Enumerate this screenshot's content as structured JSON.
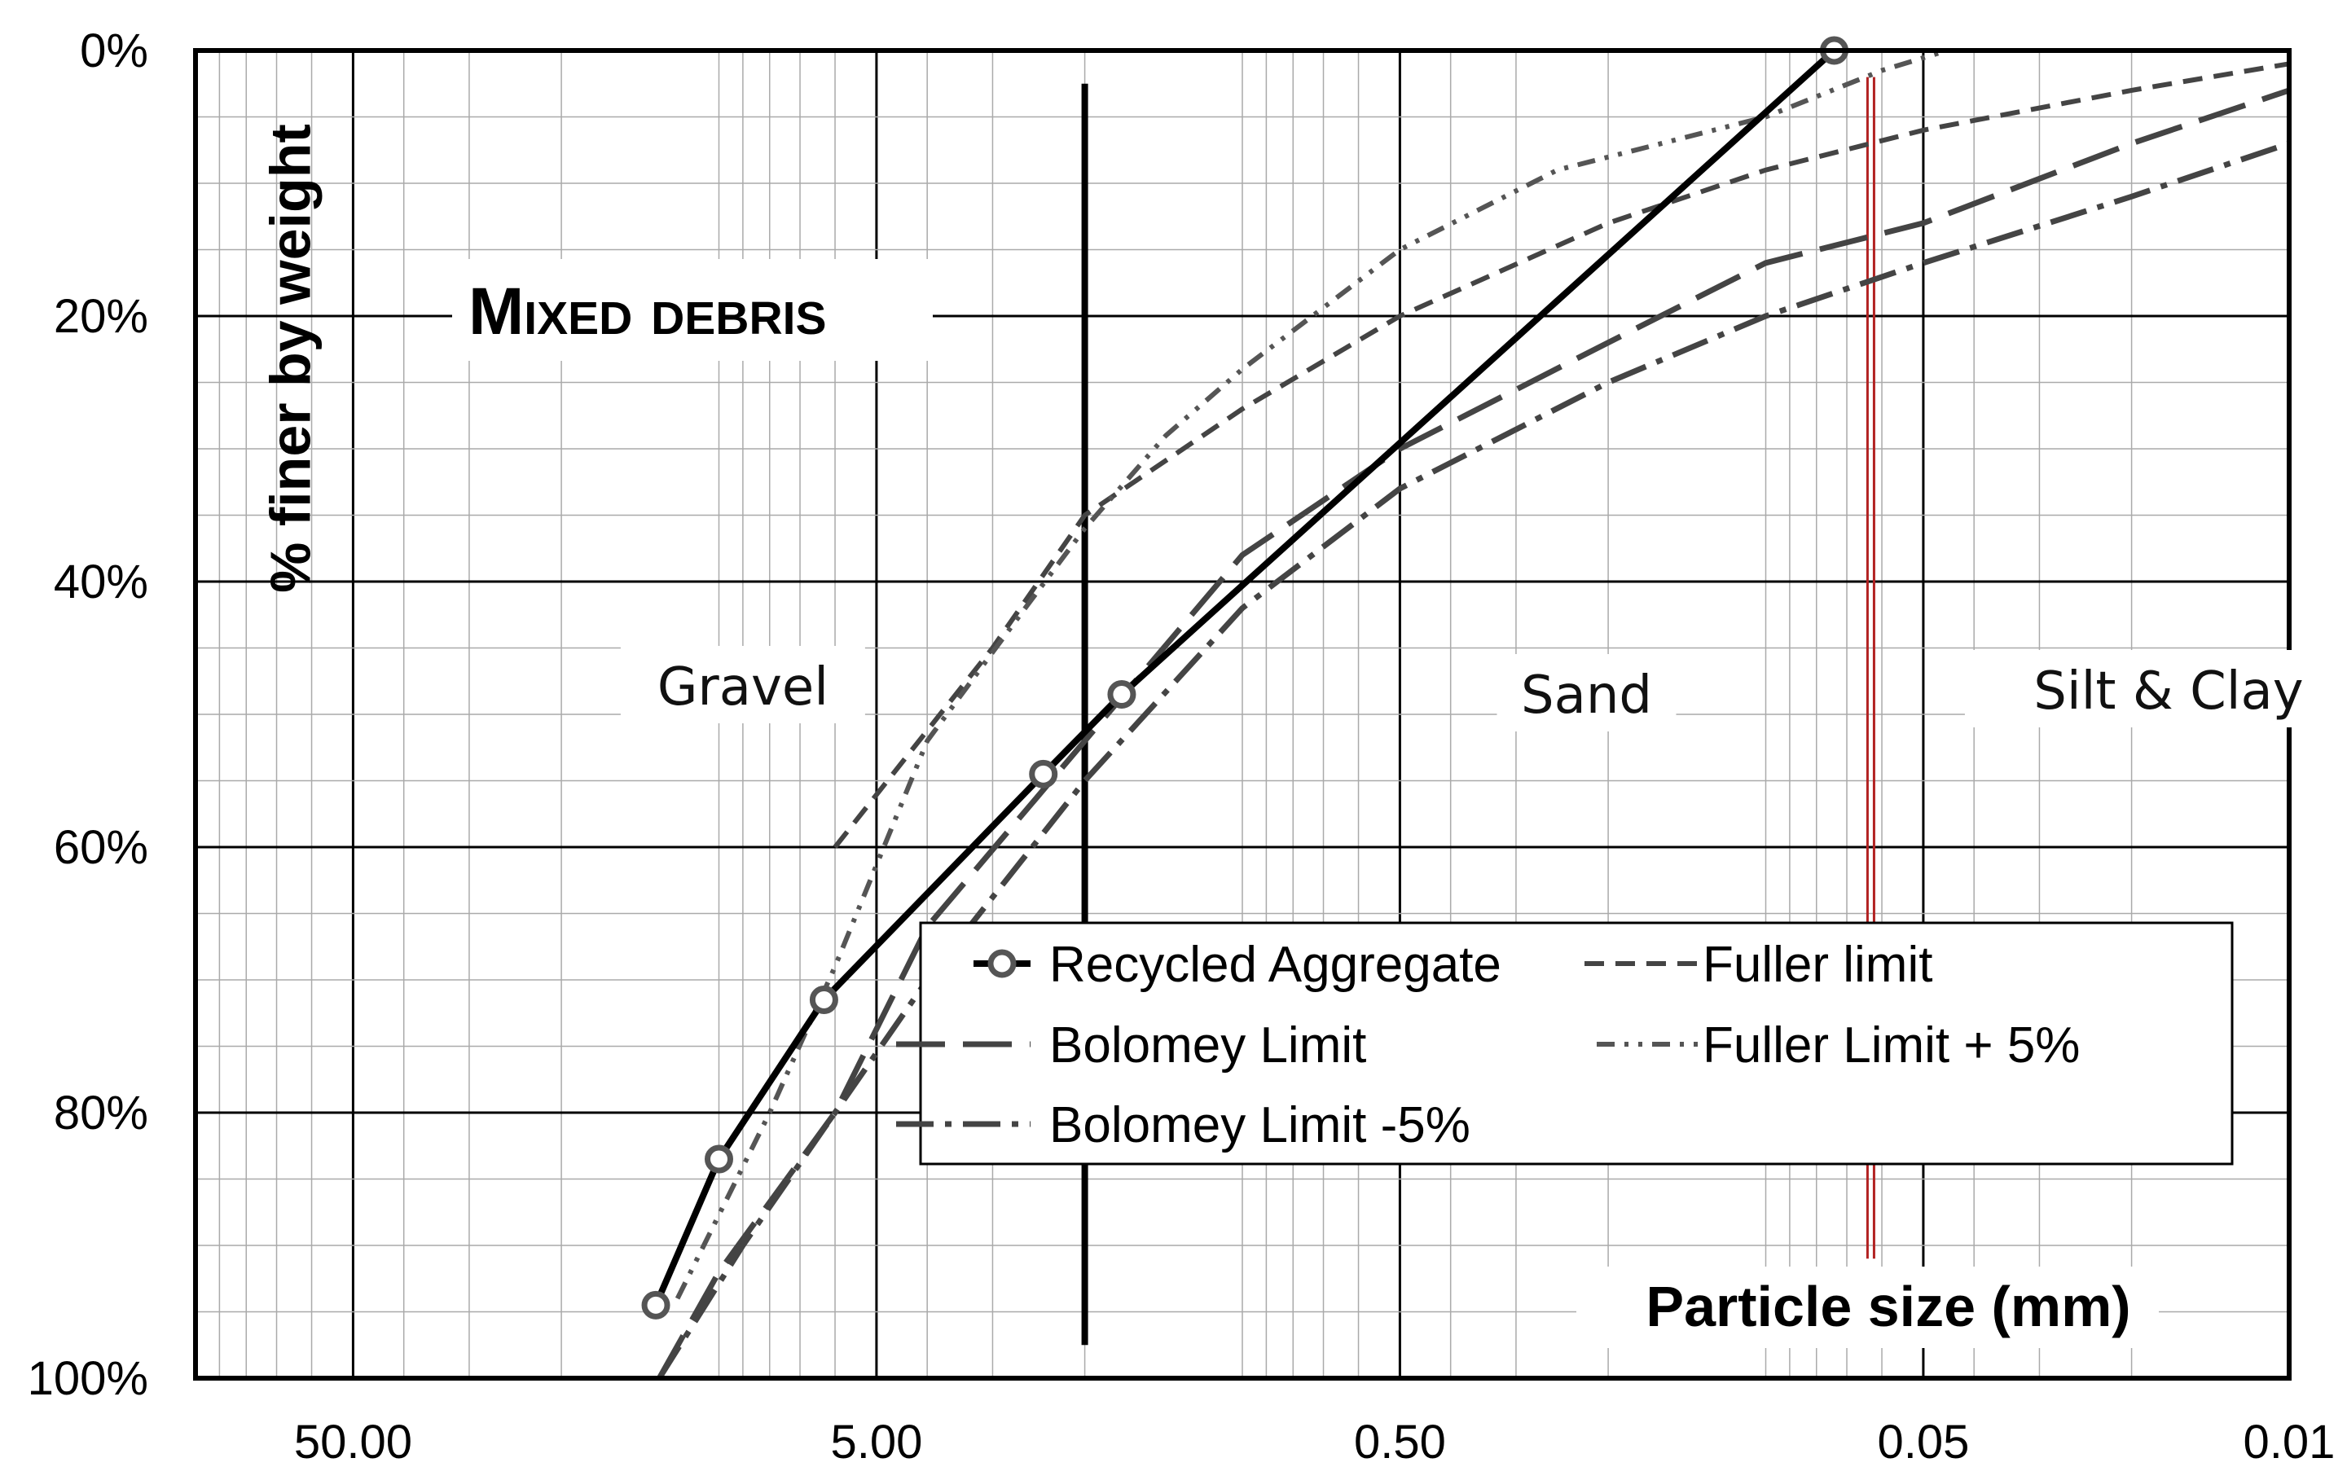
{
  "chart_data": {
    "type": "line",
    "title": "Mixed debris",
    "xlabel": "Particle size (mm)",
    "ylabel": "% finer by weight",
    "x_scale": "log",
    "x_reversed": true,
    "xlim": [
      100,
      0.01
    ],
    "ylim": [
      0,
      100
    ],
    "y_reversed": true,
    "x_ticks": [
      50,
      5,
      0.5,
      0.05,
      0.01
    ],
    "x_tick_labels": [
      "50.00",
      "5.00",
      "0.50",
      "0.05",
      "0.01"
    ],
    "y_ticks": [
      0,
      20,
      40,
      60,
      80,
      100
    ],
    "y_tick_labels": [
      "0%",
      "20%",
      "40%",
      "60%",
      "80%",
      "100%"
    ],
    "grid": true,
    "legend_position": "bottom-right",
    "regions": [
      {
        "label": "Gravel",
        "x_at": 9
      },
      {
        "label": "Sand",
        "x_at": 0.22
      },
      {
        "label": "Silt & Clay",
        "x_at": 0.017
      }
    ],
    "boundaries": [
      {
        "x": 2,
        "color": "#000000"
      },
      {
        "x": 0.063,
        "color": "#b22222"
      }
    ],
    "series": [
      {
        "name": "Recycled Aggregate",
        "style": "solid-markers",
        "color": "#000000",
        "points": [
          [
            13.2,
            94.5
          ],
          [
            10,
            83.5
          ],
          [
            6.3,
            71.5
          ],
          [
            2.4,
            54.5
          ],
          [
            1.7,
            48.5
          ],
          [
            0.074,
            0
          ]
        ]
      },
      {
        "name": "Fuller limit",
        "style": "short-dash",
        "color": "#444444",
        "points": [
          [
            6,
            60
          ],
          [
            3,
            45
          ],
          [
            2,
            35
          ],
          [
            1,
            27
          ],
          [
            0.5,
            20
          ],
          [
            0.2,
            13
          ],
          [
            0.1,
            9
          ],
          [
            0.05,
            6
          ],
          [
            0.02,
            3
          ],
          [
            0.01,
            1
          ]
        ]
      },
      {
        "name": "Bolomey Limit",
        "style": "long-dash",
        "color": "#444444",
        "points": [
          [
            13,
            100
          ],
          [
            10,
            92
          ],
          [
            6,
            80
          ],
          [
            4,
            66
          ],
          [
            2,
            52
          ],
          [
            1,
            38
          ],
          [
            0.5,
            30
          ],
          [
            0.2,
            22
          ],
          [
            0.1,
            16
          ],
          [
            0.05,
            13
          ],
          [
            0.02,
            7
          ],
          [
            0.01,
            3
          ]
        ]
      },
      {
        "name": "Fuller Limit + 5%",
        "style": "dash-dot-dot",
        "color": "#555555",
        "points": [
          [
            12,
            94
          ],
          [
            8,
            80
          ],
          [
            6,
            69
          ],
          [
            4,
            52
          ],
          [
            2.6,
            42
          ],
          [
            2,
            36
          ],
          [
            1.4,
            29
          ],
          [
            1,
            24
          ],
          [
            0.5,
            15
          ],
          [
            0.25,
            9
          ],
          [
            0.1,
            5
          ],
          [
            0.06,
            1.5
          ],
          [
            0.045,
            0
          ]
        ]
      },
      {
        "name": "Bolomey Limit -5%",
        "style": "dash-dot",
        "color": "#444444",
        "points": [
          [
            13,
            100
          ],
          [
            9,
            90
          ],
          [
            6,
            80
          ],
          [
            4,
            70
          ],
          [
            2,
            55
          ],
          [
            1,
            42
          ],
          [
            0.5,
            33
          ],
          [
            0.2,
            25
          ],
          [
            0.1,
            20
          ],
          [
            0.05,
            16
          ],
          [
            0.02,
            11
          ],
          [
            0.01,
            7
          ]
        ]
      }
    ]
  }
}
